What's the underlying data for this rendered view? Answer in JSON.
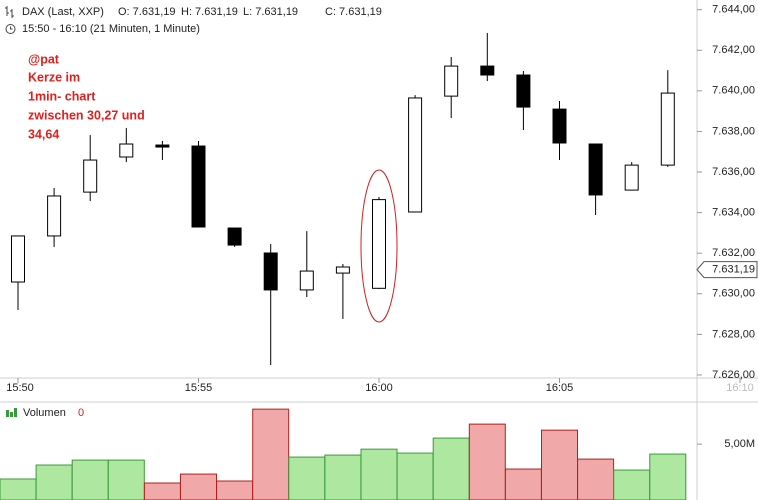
{
  "chart_data": {
    "type": "candlestick",
    "symbol": "DAX (Last, XXP)",
    "ohlc_readout": [
      "O: 7.631,19",
      "H: 7.631,19",
      "L: 7.631,19",
      "C: 7.631,19"
    ],
    "range_text": "15:50 - 16:10 (21 Minuten, 1 Minute)",
    "annotation": [
      "@pat",
      "Kerze im",
      "1min- chart",
      "zwischen 30,27 und",
      "34,64"
    ],
    "categories": [
      "15:50",
      null,
      null,
      null,
      null,
      "15:55",
      null,
      null,
      null,
      null,
      "16:00",
      null,
      null,
      null,
      null,
      "16:05",
      null,
      null,
      null,
      null,
      "16:10"
    ],
    "open": [
      7630.58,
      7632.85,
      7635.01,
      7636.74,
      7637.33,
      7637.28,
      7633.24,
      7632.01,
      7630.19,
      7631.02,
      7630.27,
      7634.03,
      7639.74,
      7641.22,
      7640.78,
      7639.1,
      7637.38,
      7635.11,
      7636.34,
      null,
      null
    ],
    "high": [
      7632.85,
      7635.21,
      7637.82,
      7638.17,
      7637.53,
      7637.53,
      7633.24,
      7632.45,
      7633.09,
      7631.47,
      7634.77,
      7639.79,
      7641.67,
      7642.85,
      7640.98,
      7639.5,
      7637.38,
      7636.49,
      7641.02,
      null,
      null
    ],
    "low": [
      7629.2,
      7632.31,
      7634.57,
      7636.49,
      7636.59,
      7633.29,
      7632.31,
      7626.49,
      7629.84,
      7628.76,
      7630.24,
      7634.03,
      7638.66,
      7640.48,
      7638.07,
      7636.59,
      7633.88,
      7635.11,
      7636.25,
      null,
      null
    ],
    "close": [
      7632.85,
      7634.82,
      7636.59,
      7637.38,
      7637.23,
      7633.29,
      7632.4,
      7630.19,
      7631.12,
      7631.32,
      7634.64,
      7639.65,
      7641.22,
      7640.78,
      7639.2,
      7637.43,
      7634.87,
      7636.34,
      7639.89,
      null,
      null
    ],
    "up_color": "#ffffff",
    "down_color": "#000000",
    "ylim": [
      7625.85,
      7644.23
    ],
    "yticks": [
      {
        "value": 7626,
        "label": "7.626,00"
      },
      {
        "value": 7628,
        "label": "7.628,00"
      },
      {
        "value": 7630,
        "label": "7.630,00"
      },
      {
        "value": 7632,
        "label": "7.632,00"
      },
      {
        "value": 7634,
        "label": "7.634,00"
      },
      {
        "value": 7636,
        "label": "7.636,00"
      },
      {
        "value": 7638,
        "label": "7.638,00"
      },
      {
        "value": 7640,
        "label": "7.640,00"
      },
      {
        "value": 7642,
        "label": "7.642,00"
      },
      {
        "value": 7644,
        "label": "7.644,00"
      }
    ],
    "last_price": {
      "value": 7631.19,
      "label": "7.631,19"
    },
    "volume": {
      "name": "Volumen",
      "readout": "0",
      "values": [
        1.88,
        3.13,
        3.57,
        3.57,
        1.52,
        2.32,
        1.7,
        8.13,
        3.84,
        4.02,
        4.55,
        4.2,
        5.54,
        6.79,
        2.77,
        6.25,
        3.66,
        2.68,
        4.11,
        null,
        null
      ],
      "up_color": "#aee8a0",
      "down_color": "#f0a8a8",
      "ylim": [
        0,
        8.5
      ],
      "yticks": [
        {
          "value": 5,
          "label": "5,00M"
        }
      ]
    }
  }
}
